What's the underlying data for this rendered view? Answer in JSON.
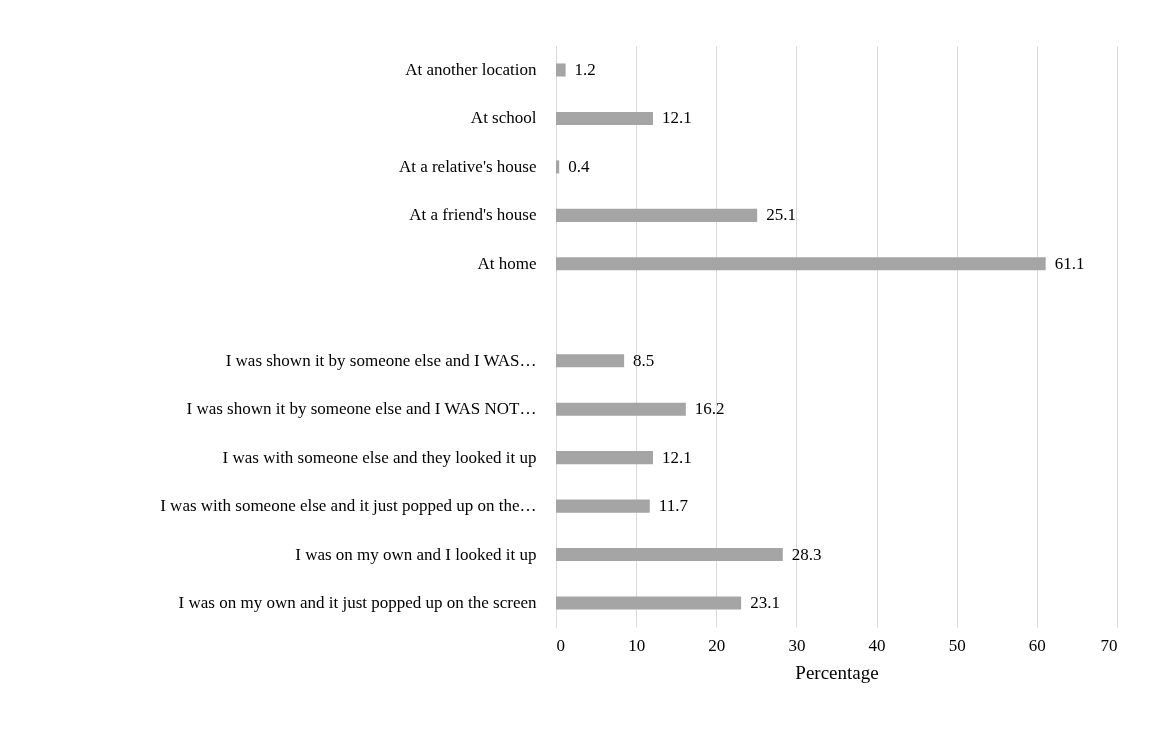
{
  "chart_data": {
    "type": "bar",
    "orientation": "horizontal",
    "categories": [
      "At another location",
      "At school",
      "At a relative's house",
      "At a friend's house",
      "At home",
      null,
      "I was shown it by someone else and I WAS…",
      "I was shown it by someone else and I WAS NOT…",
      "I was with someone else and they looked it up",
      "I was with someone else and it just popped up on the…",
      "I was on my own and I looked it up",
      "I was on my own and it just popped up on the screen"
    ],
    "values": [
      1.2,
      12.1,
      0.4,
      25.1,
      61.1,
      null,
      8.5,
      16.2,
      12.1,
      11.7,
      28.3,
      23.1
    ],
    "color": "#a5a5a5",
    "xlabel": "Percentage",
    "xlim": [
      0,
      70
    ],
    "xticks": [
      0,
      10,
      20,
      30,
      40,
      50,
      60,
      70
    ],
    "grid": "x",
    "data_labels": true
  }
}
